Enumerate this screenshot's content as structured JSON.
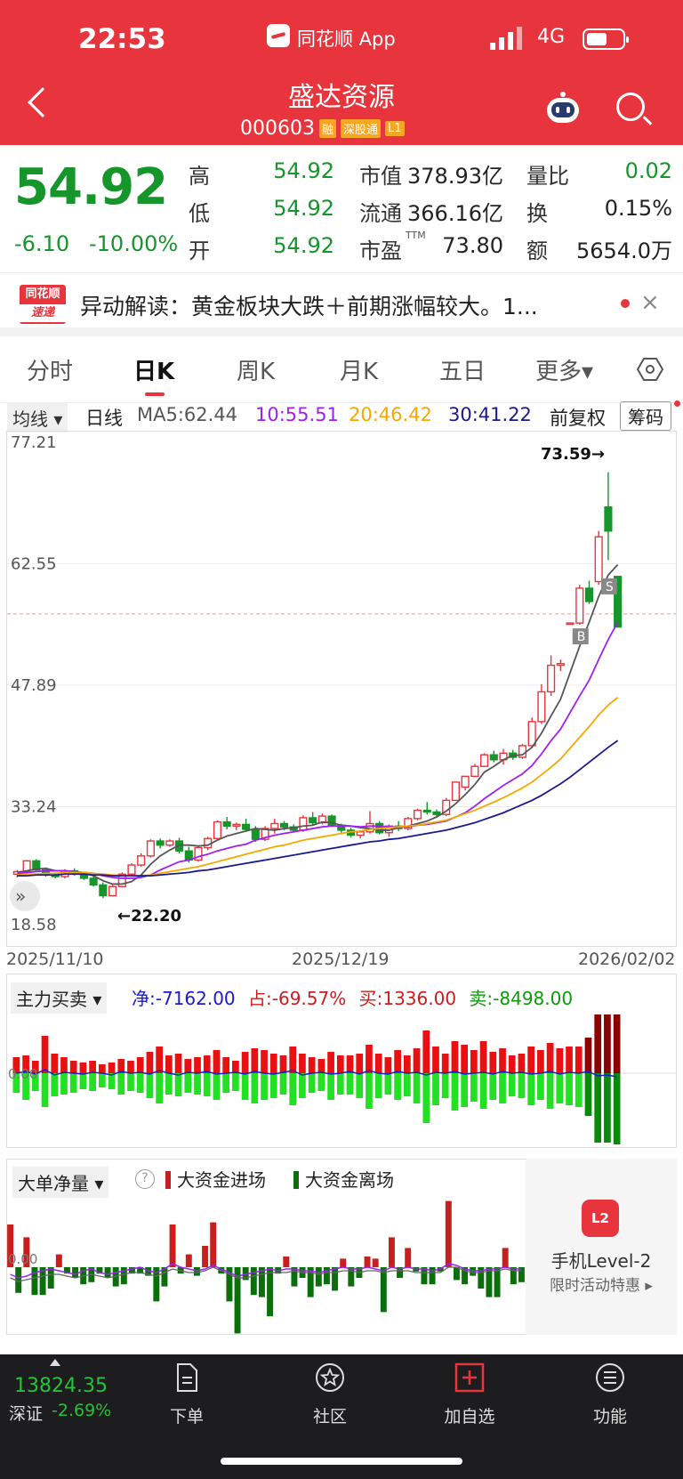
{
  "status": {
    "time": "22:53",
    "app_name": "同花顺 App",
    "network": "4G"
  },
  "header": {
    "stock_name": "盛达资源",
    "code": "000603",
    "tags": [
      "融",
      "深股通",
      "L1"
    ]
  },
  "quote": {
    "price": "54.92",
    "change": "-6.10",
    "change_pct": "-10.00%",
    "rows": [
      {
        "l1": "高",
        "v1": "54.92",
        "l2": "市值",
        "v2": "378.93亿",
        "l3": "量比",
        "v3": "0.02"
      },
      {
        "l1": "低",
        "v1": "54.92",
        "l2": "流通",
        "v2": "366.16亿",
        "l3": "换",
        "v3": "0.15%"
      },
      {
        "l1": "开",
        "v1": "54.92",
        "l2": "市盈",
        "l2sup": "TTM",
        "v2": "73.80",
        "l3": "额",
        "v3": "5654.0万"
      }
    ],
    "colors": {
      "down": "#16952a",
      "up": "#e8343c"
    }
  },
  "news": {
    "logo_top": "同花顺",
    "logo_bottom": "速递",
    "text": "异动解读：黄金板块大跌＋前期涨幅较大。1...",
    "close": "×"
  },
  "tabs": {
    "items": [
      "分时",
      "日K",
      "周K",
      "月K",
      "五日",
      "更多▾"
    ],
    "active": "日K"
  },
  "indicator": {
    "selector": "均线 ▾",
    "line": "日线",
    "ma5": "MA5:62.44",
    "ma10": "10:55.51",
    "ma20": "20:46.42",
    "ma30": "30:41.22",
    "adjust": "前复权",
    "chips": "筹码",
    "colors": {
      "ma5": "#555555",
      "ma10": "#a020f0",
      "ma20": "#f5a800",
      "ma30": "#1a1a8c"
    }
  },
  "chart_data": {
    "type": "candlestick",
    "y_ticks": [
      "77.21",
      "62.55",
      "47.89",
      "33.24",
      "18.58"
    ],
    "ylim": [
      18.58,
      77.21
    ],
    "dates": [
      "2025/11/10",
      "2025/12/19",
      "2026/02/02"
    ],
    "annotations": {
      "high": "73.59→",
      "low": "←22.20",
      "buy": "B",
      "sell": "S",
      "prev_close_line": 56.5
    },
    "candles": [
      [
        25.1,
        25.6,
        24.7,
        25.4
      ],
      [
        25.4,
        26.8,
        25.2,
        26.7
      ],
      [
        26.7,
        26.9,
        25.5,
        25.6
      ],
      [
        25.6,
        25.9,
        24.8,
        25.0
      ],
      [
        25.0,
        25.3,
        24.6,
        24.8
      ],
      [
        24.8,
        25.7,
        24.6,
        25.5
      ],
      [
        25.5,
        25.8,
        24.9,
        25.2
      ],
      [
        25.2,
        25.4,
        24.4,
        24.6
      ],
      [
        24.6,
        24.9,
        23.6,
        23.8
      ],
      [
        23.8,
        24.1,
        22.2,
        22.5
      ],
      [
        22.5,
        23.8,
        22.4,
        23.6
      ],
      [
        23.6,
        25.3,
        23.5,
        25.1
      ],
      [
        25.1,
        26.4,
        24.9,
        26.2
      ],
      [
        26.2,
        27.6,
        26.0,
        27.3
      ],
      [
        27.3,
        29.3,
        27.1,
        29.1
      ],
      [
        29.1,
        29.4,
        28.2,
        28.6
      ],
      [
        28.6,
        29.3,
        28.4,
        29.1
      ],
      [
        29.1,
        29.5,
        27.6,
        27.9
      ],
      [
        27.9,
        28.4,
        26.5,
        26.8
      ],
      [
        26.8,
        28.5,
        26.6,
        28.3
      ],
      [
        28.3,
        29.6,
        28.0,
        29.4
      ],
      [
        29.4,
        31.6,
        29.2,
        31.4
      ],
      [
        31.4,
        32.0,
        30.5,
        30.9
      ],
      [
        30.9,
        31.3,
        30.4,
        31.1
      ],
      [
        31.1,
        31.8,
        30.2,
        30.5
      ],
      [
        30.5,
        30.9,
        29.0,
        29.3
      ],
      [
        29.3,
        30.9,
        29.1,
        30.6
      ],
      [
        30.6,
        31.8,
        30.0,
        31.2
      ],
      [
        31.2,
        31.5,
        30.4,
        30.8
      ],
      [
        30.8,
        31.1,
        30.1,
        30.4
      ],
      [
        30.4,
        32.2,
        30.2,
        31.9
      ],
      [
        31.9,
        32.6,
        31.0,
        31.3
      ],
      [
        31.3,
        32.4,
        31.1,
        32.1
      ],
      [
        32.1,
        32.3,
        30.8,
        31.0
      ],
      [
        31.0,
        31.2,
        30.1,
        30.4
      ],
      [
        30.4,
        30.7,
        29.5,
        29.8
      ],
      [
        29.8,
        30.4,
        29.4,
        30.2
      ],
      [
        30.2,
        32.7,
        30.0,
        31.2
      ],
      [
        31.2,
        31.5,
        29.9,
        30.1
      ],
      [
        30.1,
        31.1,
        29.6,
        30.9
      ],
      [
        30.9,
        31.5,
        30.3,
        30.6
      ],
      [
        30.6,
        32.0,
        30.4,
        31.8
      ],
      [
        31.8,
        33.0,
        31.6,
        32.8
      ],
      [
        32.8,
        33.8,
        32.3,
        32.6
      ],
      [
        32.6,
        32.9,
        31.9,
        32.3
      ],
      [
        32.3,
        34.3,
        32.1,
        34.0
      ],
      [
        34.0,
        36.2,
        34.0,
        36.2
      ],
      [
        35.6,
        36.6,
        35.2,
        36.9
      ],
      [
        36.9,
        38.4,
        36.8,
        38.1
      ],
      [
        38.1,
        39.7,
        38.0,
        39.5
      ],
      [
        39.5,
        40.0,
        38.6,
        38.9
      ],
      [
        38.9,
        40.2,
        38.3,
        39.7
      ],
      [
        39.7,
        40.1,
        38.9,
        39.2
      ],
      [
        39.2,
        40.8,
        39.0,
        40.6
      ],
      [
        40.6,
        44.0,
        40.3,
        43.5
      ],
      [
        43.5,
        48.0,
        43.2,
        47.1
      ],
      [
        47.1,
        51.5,
        46.6,
        50.3
      ],
      [
        50.3,
        51.0,
        49.6,
        50.5
      ],
      [
        55.4,
        55.4,
        55.4,
        55.4
      ],
      [
        55.4,
        60.0,
        55.2,
        59.6
      ],
      [
        59.6,
        60.5,
        57.7,
        58.0
      ],
      [
        60.4,
        66.5,
        60.0,
        65.8
      ],
      [
        69.4,
        73.59,
        63.0,
        66.5
      ],
      [
        61.02,
        61.02,
        54.92,
        54.92
      ]
    ],
    "ma5": [
      25.3,
      25.5,
      25.7,
      25.8,
      25.5,
      25.5,
      25.4,
      25.2,
      24.9,
      24.3,
      23.9,
      23.9,
      24.2,
      25.0,
      26.3,
      27.3,
      28.0,
      28.6,
      28.6,
      28.5,
      28.6,
      29.2,
      29.7,
      30.0,
      30.3,
      30.6,
      30.5,
      30.4,
      30.6,
      30.7,
      30.9,
      31.0,
      31.4,
      31.3,
      31.0,
      30.9,
      30.7,
      30.6,
      30.4,
      30.4,
      30.7,
      30.9,
      31.2,
      31.5,
      32.0,
      32.7,
      33.6,
      34.7,
      35.9,
      37.4,
      38.1,
      38.9,
      39.4,
      39.5,
      40.4,
      42.1,
      44.2,
      46.2,
      49.4,
      52.6,
      55.5,
      58.6,
      61.2,
      62.44
    ],
    "ma10": [
      25.2,
      25.3,
      25.4,
      25.5,
      25.5,
      25.5,
      25.4,
      25.3,
      25.2,
      24.9,
      24.7,
      24.6,
      24.6,
      24.7,
      25.0,
      25.6,
      26.1,
      26.6,
      26.8,
      27.2,
      27.5,
      27.9,
      28.2,
      28.5,
      28.7,
      29.2,
      29.5,
      29.8,
      30.0,
      30.2,
      30.4,
      30.6,
      30.8,
      30.9,
      30.9,
      30.9,
      30.8,
      30.9,
      30.9,
      30.8,
      30.8,
      30.8,
      31.0,
      31.1,
      31.3,
      31.5,
      32.0,
      32.5,
      33.3,
      34.2,
      35.0,
      35.8,
      36.5,
      37.2,
      38.2,
      39.6,
      41.2,
      42.6,
      44.6,
      46.6,
      48.5,
      51.0,
      53.4,
      55.51
    ],
    "ma20": [
      25.0,
      25.1,
      25.1,
      25.2,
      25.2,
      25.3,
      25.3,
      25.3,
      25.2,
      25.1,
      25.0,
      24.9,
      24.9,
      24.9,
      25.0,
      25.2,
      25.4,
      25.6,
      25.8,
      26.0,
      26.3,
      26.6,
      26.9,
      27.2,
      27.5,
      27.8,
      28.1,
      28.4,
      28.6,
      28.9,
      29.2,
      29.4,
      29.6,
      29.8,
      30.0,
      30.2,
      30.3,
      30.5,
      30.6,
      30.7,
      30.8,
      30.9,
      31.0,
      31.2,
      31.4,
      31.6,
      32.0,
      32.4,
      32.8,
      33.3,
      33.8,
      34.3,
      34.9,
      35.5,
      36.2,
      37.1,
      38.0,
      39.0,
      40.3,
      41.6,
      42.9,
      44.3,
      45.5,
      46.42
    ],
    "ma30": [
      24.9,
      24.9,
      25.0,
      25.0,
      25.0,
      25.1,
      25.1,
      25.1,
      25.0,
      25.0,
      24.9,
      24.9,
      24.9,
      24.9,
      24.9,
      25.0,
      25.1,
      25.2,
      25.3,
      25.5,
      25.6,
      25.8,
      26.0,
      26.2,
      26.4,
      26.6,
      26.8,
      27.0,
      27.2,
      27.4,
      27.6,
      27.8,
      28.0,
      28.2,
      28.4,
      28.6,
      28.8,
      29.0,
      29.1,
      29.3,
      29.4,
      29.6,
      29.8,
      30.0,
      30.2,
      30.4,
      30.7,
      31.0,
      31.3,
      31.7,
      32.1,
      32.5,
      33.0,
      33.5,
      34.0,
      34.6,
      35.3,
      36.0,
      36.8,
      37.7,
      38.6,
      39.5,
      40.4,
      41.22
    ]
  },
  "main_force": {
    "selector": "主力买卖 ▾",
    "net": "净:-7162.00",
    "ratio": "占:-69.57%",
    "buy": "买:1336.00",
    "sell": "卖:-8498.00",
    "axis_label": "0.00",
    "colors": {
      "net": "#1a1acc",
      "ratio": "#c81e1e",
      "buy": "#c81e1e",
      "sell": "#0a9a0a"
    },
    "buy_values": [
      18,
      20,
      14,
      42,
      22,
      18,
      14,
      12,
      14,
      10,
      12,
      16,
      14,
      18,
      24,
      30,
      20,
      22,
      16,
      18,
      20,
      26,
      18,
      14,
      24,
      28,
      26,
      22,
      20,
      30,
      22,
      18,
      16,
      24,
      20,
      20,
      22,
      32,
      22,
      18,
      26,
      20,
      28,
      48,
      30,
      22,
      36,
      32,
      26,
      36,
      24,
      28,
      20,
      22,
      30,
      26,
      34,
      28,
      30,
      30,
      40,
      66,
      66,
      66
    ],
    "sell_values": [
      -22,
      -30,
      -20,
      -38,
      -26,
      -24,
      -22,
      -18,
      -20,
      -16,
      -18,
      -24,
      -20,
      -22,
      -28,
      -34,
      -24,
      -26,
      -22,
      -24,
      -26,
      -30,
      -22,
      -20,
      -30,
      -34,
      -30,
      -28,
      -24,
      -36,
      -28,
      -22,
      -20,
      -30,
      -24,
      -24,
      -28,
      -40,
      -28,
      -24,
      -30,
      -26,
      -34,
      -56,
      -36,
      -28,
      -42,
      -38,
      -32,
      -40,
      -30,
      -34,
      -26,
      -28,
      -36,
      -30,
      -40,
      -34,
      -36,
      -38,
      -48,
      -78,
      -78,
      -80
    ],
    "line": [
      0,
      2,
      -1,
      4,
      -2,
      1,
      0,
      -1,
      1,
      0,
      -2,
      2,
      0,
      1,
      -1,
      3,
      0,
      -2,
      1,
      0,
      2,
      -1,
      0,
      1,
      -1,
      2,
      0,
      -1,
      1,
      3,
      -2,
      0,
      1,
      -1,
      0,
      2,
      -1,
      3,
      0,
      -1,
      2,
      0,
      1,
      -2,
      1,
      0,
      2,
      -1,
      0,
      1,
      -1,
      2,
      0,
      1,
      -1,
      0,
      2,
      -1,
      1,
      0,
      2,
      -3,
      -2,
      -4
    ]
  },
  "big_orders": {
    "selector": "大单净量 ▾",
    "help": "?",
    "legend_in": "大资金进场",
    "legend_out": "大资金离场",
    "axis_label": "0.00",
    "colors": {
      "in": "#c81e1e",
      "out": "#0a6e0a"
    },
    "values": [
      40,
      -24,
      28,
      -26,
      -26,
      -20,
      12,
      -6,
      -10,
      -16,
      -14,
      -6,
      -10,
      -18,
      -16,
      -6,
      -6,
      -8,
      -32,
      -18,
      40,
      -6,
      12,
      -8,
      20,
      42,
      -6,
      -32,
      -62,
      -12,
      -26,
      -28,
      -46,
      -6,
      10,
      -18,
      -10,
      -28,
      -18,
      -16,
      -22,
      8,
      -18,
      -10,
      10,
      8,
      -42,
      28,
      -10,
      18,
      -4,
      -16,
      -16,
      -4,
      62,
      -12,
      -16,
      -8,
      -20,
      -28,
      -28,
      18,
      -16,
      -14
    ],
    "line1": [
      -4,
      -6,
      -5,
      -3,
      -2,
      -1,
      -2,
      -3,
      -4,
      -2,
      -1,
      -3,
      -4,
      -3,
      -2,
      -1,
      0,
      -2,
      -3,
      -1,
      2,
      0,
      -1,
      -2,
      -1,
      1,
      -1,
      -3,
      -5,
      -4,
      -3,
      -2,
      -1,
      -2,
      -1,
      -1,
      -2,
      -2,
      -3,
      -2,
      -1,
      0,
      -1,
      -1,
      0,
      -1,
      -2,
      0,
      -1,
      0,
      -1,
      -1,
      -2,
      -1,
      2,
      1,
      -1,
      -2,
      -2,
      -1,
      -1,
      0,
      -1,
      -1
    ],
    "line2": [
      -6,
      -8,
      -7,
      -6,
      -5,
      -4,
      -4,
      -5,
      -6,
      -5,
      -4,
      -5,
      -6,
      -5,
      -4,
      -3,
      -3,
      -4,
      -5,
      -3,
      -1,
      -2,
      -3,
      -3,
      -2,
      0,
      -2,
      -4,
      -6,
      -6,
      -5,
      -4,
      -3,
      -3,
      -3,
      -2,
      -3,
      -3,
      -4,
      -3,
      -3,
      -2,
      -2,
      -3,
      -2,
      -2,
      -3,
      -2,
      -2,
      -2,
      -3,
      -3,
      -3,
      -3,
      0,
      0,
      -2,
      -3,
      -3,
      -2,
      -2,
      -1,
      -2,
      -2
    ]
  },
  "level2": {
    "icon": "L2",
    "title": "手机Level-2",
    "subtitle": "限时活动特惠 ▸"
  },
  "bottom": {
    "index_value": "13824.35",
    "index_name": "深证",
    "index_pct": "-2.69%",
    "nav": [
      "下单",
      "社区",
      "加自选",
      "功能"
    ]
  }
}
